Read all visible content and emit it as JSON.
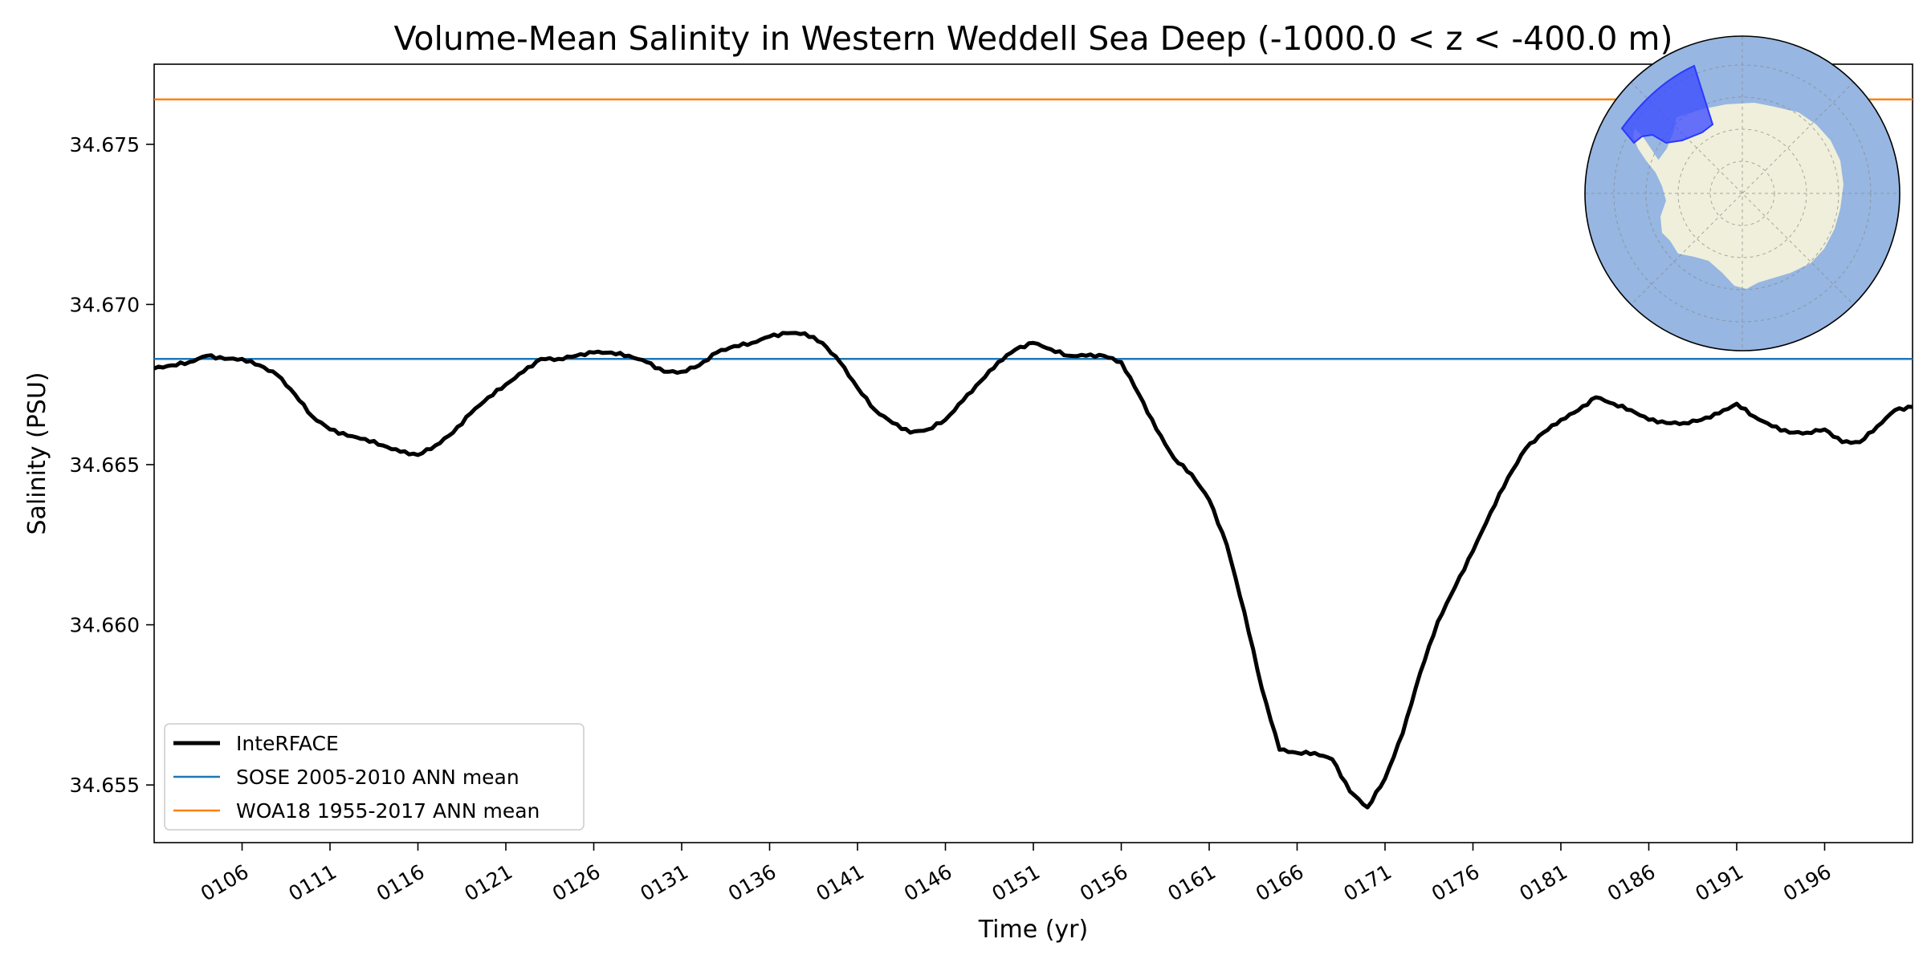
{
  "chart_data": {
    "type": "line",
    "title": "Volume-Mean Salinity in Western Weddell Sea Deep (-1000.0 < z < -400.0 m)",
    "xlabel": "Time (yr)",
    "ylabel": "Salinity (PSU)",
    "xlim": [
      101,
      201
    ],
    "ylim": [
      34.6532,
      34.6775
    ],
    "x_ticks": [
      106,
      111,
      116,
      121,
      126,
      131,
      136,
      141,
      146,
      151,
      156,
      161,
      166,
      171,
      176,
      181,
      186,
      191,
      196
    ],
    "x_tick_labels": [
      "0106",
      "0111",
      "0116",
      "0121",
      "0126",
      "0131",
      "0136",
      "0141",
      "0146",
      "0151",
      "0156",
      "0161",
      "0166",
      "0171",
      "0176",
      "0181",
      "0186",
      "0191",
      "0196"
    ],
    "y_ticks": [
      34.655,
      34.66,
      34.665,
      34.67,
      34.675
    ],
    "y_tick_labels": [
      "34.655",
      "34.660",
      "34.665",
      "34.670",
      "34.675"
    ],
    "legend_position": "lower-left",
    "series": [
      {
        "name": "InteRFACE",
        "color": "#000000",
        "x": [
          101,
          102,
          103,
          104,
          105,
          106,
          107,
          108,
          109,
          110,
          111,
          112,
          113,
          114,
          115,
          116,
          117,
          118,
          119,
          120,
          121,
          122,
          123,
          124,
          125,
          126,
          127,
          128,
          129,
          130,
          131,
          132,
          133,
          134,
          135,
          136,
          137,
          138,
          139,
          140,
          141,
          142,
          143,
          144,
          145,
          146,
          147,
          148,
          149,
          150,
          151,
          152,
          153,
          154,
          155,
          156,
          157,
          158,
          159,
          160,
          161,
          162,
          163,
          164,
          165,
          166,
          167,
          168,
          169,
          170,
          171,
          172,
          173,
          174,
          175,
          176,
          177,
          178,
          179,
          180,
          181,
          182,
          183,
          184,
          185,
          186,
          187,
          188,
          189,
          190,
          191,
          192,
          193,
          194,
          195,
          196,
          197,
          198,
          199,
          200,
          201
        ],
        "values": [
          34.668,
          34.6681,
          34.6682,
          34.6684,
          34.6683,
          34.6683,
          34.6681,
          34.6678,
          34.6672,
          34.6665,
          34.6661,
          34.6659,
          34.6658,
          34.6656,
          34.6654,
          34.6653,
          34.6656,
          34.666,
          34.6666,
          34.6671,
          34.6675,
          34.6679,
          34.6683,
          34.6683,
          34.6684,
          34.6685,
          34.6685,
          34.6684,
          34.6682,
          34.6679,
          34.6679,
          34.6681,
          34.6685,
          34.6687,
          34.6688,
          34.669,
          34.6691,
          34.6691,
          34.6688,
          34.6682,
          34.6674,
          34.6667,
          34.6663,
          34.666,
          34.6661,
          34.6664,
          34.667,
          34.6676,
          34.6682,
          34.6686,
          34.6688,
          34.6686,
          34.6684,
          34.6684,
          34.6684,
          34.6682,
          34.6672,
          34.6661,
          34.6652,
          34.6647,
          34.6639,
          34.6625,
          34.6604,
          34.658,
          34.6561,
          34.656,
          34.656,
          34.6558,
          34.6548,
          34.6543,
          34.6552,
          34.6566,
          34.6585,
          34.6601,
          34.6612,
          34.6623,
          34.6635,
          34.6646,
          34.6655,
          34.666,
          34.6664,
          34.6667,
          34.6671,
          34.6669,
          34.6667,
          34.6664,
          34.6663,
          34.6663,
          34.6664,
          34.6666,
          34.6669,
          34.6665,
          34.6662,
          34.666,
          34.666,
          34.6661,
          34.6657,
          34.6657,
          34.6662,
          34.6667,
          34.6668
        ]
      },
      {
        "name": "SOSE 2005-2010 ANN mean",
        "color": "#1f77b4",
        "constant": 34.6683
      },
      {
        "name": "WOA18 1955-2017 ANN mean",
        "color": "#ff7f0e",
        "constant": 34.6764
      }
    ]
  },
  "inset_map": {
    "description_icon": "antarctica-region-map-icon",
    "ocean_color": "#97b6e1",
    "land_color": "#efefdb",
    "region_color": "#3b4cff"
  }
}
